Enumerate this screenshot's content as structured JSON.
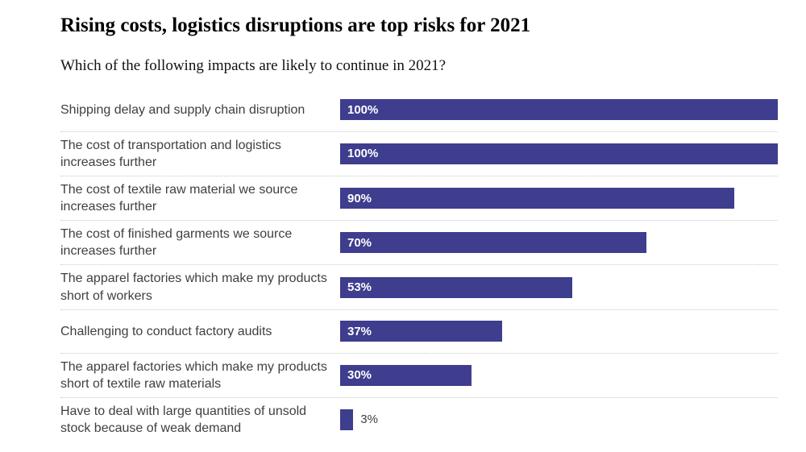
{
  "page": {
    "background": "#ffffff"
  },
  "header": {
    "title": "Rising costs, logistics disruptions are top risks for 2021",
    "subtitle": "Which of the following impacts are likely to continue in 2021?"
  },
  "chart_data": {
    "type": "bar",
    "orientation": "horizontal",
    "title": "Rising costs, logistics disruptions are top risks for 2021",
    "subtitle": "Which of the following impacts are likely to continue in 2021?",
    "categories": [
      "Shipping delay and supply chain disruption",
      "The cost of transportation and logistics increases further",
      "The cost of textile raw material we source increases further",
      "The cost of finished garments we source increases further",
      "The apparel factories which make my products short of workers",
      "Challenging to conduct factory audits",
      "The apparel factories which make my products short of textile raw materials",
      "Have to deal with large quantities of unsold stock because of weak demand"
    ],
    "values": [
      100,
      100,
      90,
      70,
      53,
      37,
      30,
      3
    ],
    "value_suffix": "%",
    "xlim": [
      0,
      100
    ],
    "grid": false,
    "legend": "none",
    "bar_color": "#3e3d8e",
    "bar_label_color_inside": "#ffffff",
    "bar_label_color_outside": "#3f3f3f",
    "inside_label_threshold": 10,
    "category_label_color": "#3f3f3f",
    "separator_color": "#c9c9c9",
    "separator_style": "dotted"
  }
}
